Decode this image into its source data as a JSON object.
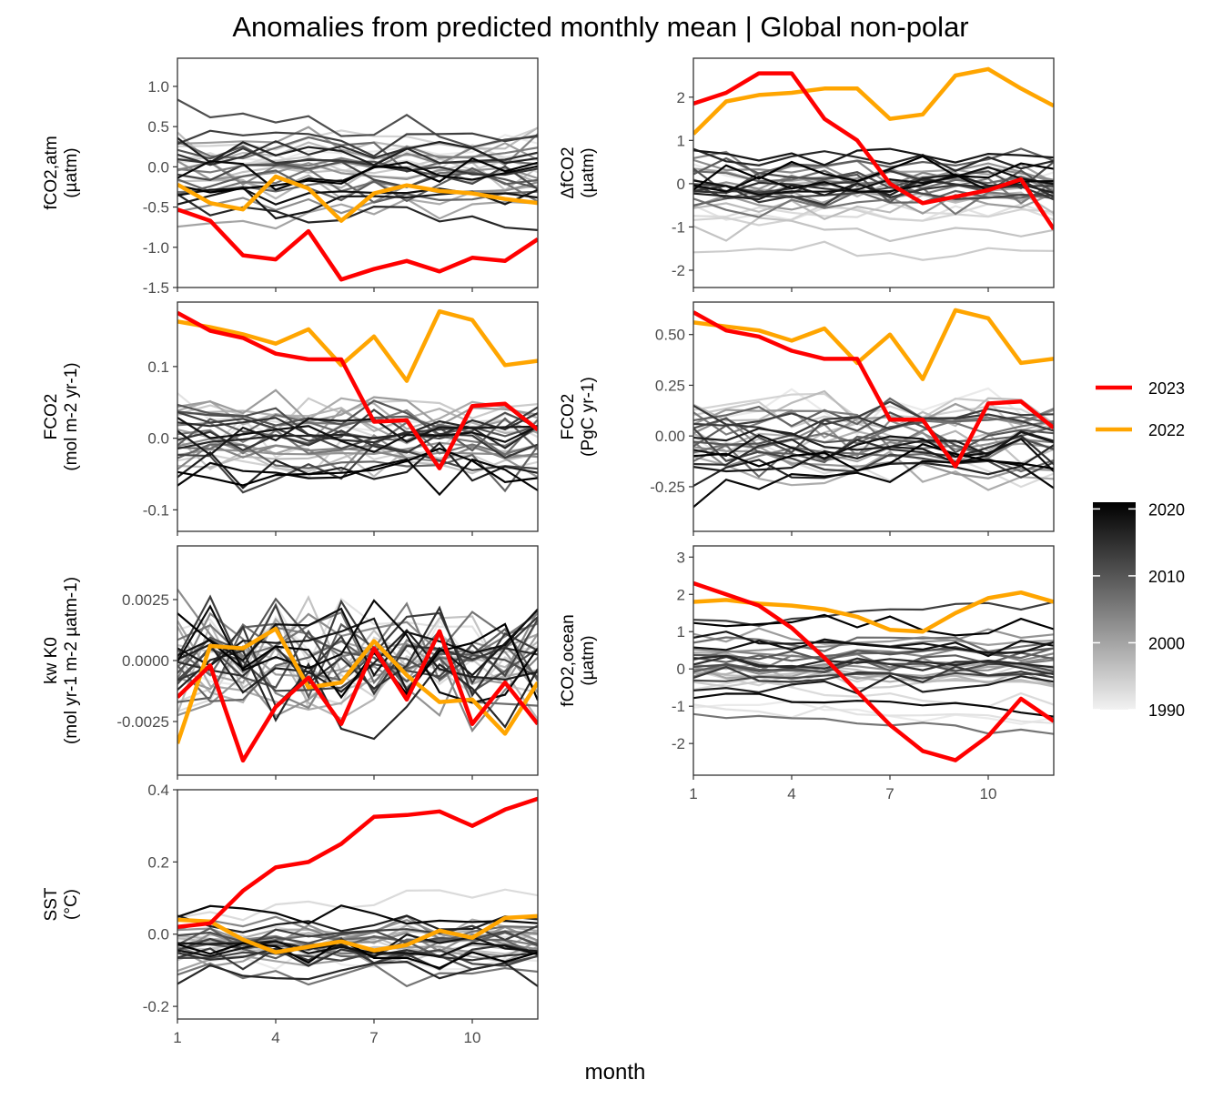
{
  "title": "Anomalies from predicted monthly mean | Global non-polar",
  "xlabel": "month",
  "legend": {
    "highlight": [
      {
        "label": "2023",
        "color": "#ff0000"
      },
      {
        "label": "2022",
        "color": "#ffa500"
      }
    ],
    "colorbar": {
      "labels": [
        "2020",
        "2010",
        "2000",
        "1990"
      ],
      "ticks": [
        2020,
        2010,
        2000,
        1990
      ],
      "min": 1990,
      "max": 2021,
      "low_color": "#f2f2f2",
      "high_color": "#000000"
    }
  },
  "chart_data": [
    {
      "type": "line",
      "panel": "fCO2_atm",
      "ylabel_lines": [
        "fCO2,atm",
        "(µatm)"
      ],
      "xlim": [
        1,
        12
      ],
      "ylim": [
        -1.5,
        1.35
      ],
      "yticks": [
        -1.5,
        -1.0,
        -0.5,
        0.0,
        0.5,
        1.0
      ],
      "ytick_labels": [
        "-1.5",
        "-1.0",
        "-0.5",
        "0.0",
        "0.5",
        "1.0"
      ],
      "x": [
        1,
        2,
        3,
        4,
        5,
        6,
        7,
        8,
        9,
        10,
        11,
        12
      ],
      "series": [
        {
          "name": "2023",
          "values": [
            -0.53,
            -0.67,
            -1.1,
            -1.15,
            -0.8,
            -1.4,
            -1.27,
            -1.17,
            -1.3,
            -1.13,
            -1.17,
            -0.9
          ]
        },
        {
          "name": "2022",
          "values": [
            -0.22,
            -0.45,
            -0.53,
            -0.12,
            -0.27,
            -0.67,
            -0.33,
            -0.23,
            -0.3,
            -0.33,
            -0.4,
            -0.45
          ]
        }
      ],
      "background": {
        "years": [
          1991,
          2021
        ],
        "center": 0.0,
        "spread": 0.55,
        "noise": 0.16,
        "trend": 0.0
      }
    },
    {
      "type": "line",
      "panel": "delta_fCO2",
      "ylabel_lines": [
        "ΔfCO2",
        "(µatm)"
      ],
      "xlim": [
        1,
        12
      ],
      "ylim": [
        -2.4,
        2.9
      ],
      "yticks": [
        -2,
        -1,
        0,
        1,
        2
      ],
      "ytick_labels": [
        "-2",
        "-1",
        "0",
        "1",
        "2"
      ],
      "x": [
        1,
        2,
        3,
        4,
        5,
        6,
        7,
        8,
        9,
        10,
        11,
        12
      ],
      "series": [
        {
          "name": "2023",
          "values": [
            1.85,
            2.1,
            2.55,
            2.55,
            1.5,
            1.0,
            0.0,
            -0.45,
            -0.3,
            -0.15,
            0.1,
            -1.05
          ]
        },
        {
          "name": "2022",
          "values": [
            1.15,
            1.9,
            2.05,
            2.1,
            2.2,
            2.2,
            1.5,
            1.6,
            2.5,
            2.65,
            2.2,
            1.8
          ]
        }
      ],
      "background": {
        "years": [
          1991,
          2021
        ],
        "center": -0.2,
        "spread": 1.0,
        "noise": 0.25,
        "trend": 0.0
      }
    },
    {
      "type": "line",
      "panel": "FCO2_area",
      "ylabel_lines": [
        "FCO2",
        "(mol m-2 yr-1)"
      ],
      "xlim": [
        1,
        12
      ],
      "ylim": [
        -0.13,
        0.19
      ],
      "yticks": [
        -0.1,
        0.0,
        0.1
      ],
      "ytick_labels": [
        "-0.1",
        "0.0",
        "0.1"
      ],
      "x": [
        1,
        2,
        3,
        4,
        5,
        6,
        7,
        8,
        9,
        10,
        11,
        12
      ],
      "series": [
        {
          "name": "2023",
          "values": [
            0.175,
            0.15,
            0.14,
            0.118,
            0.11,
            0.11,
            0.023,
            0.025,
            -0.042,
            0.045,
            0.048,
            0.012
          ]
        },
        {
          "name": "2022",
          "values": [
            0.163,
            0.155,
            0.145,
            0.132,
            0.152,
            0.102,
            0.142,
            0.08,
            0.177,
            0.165,
            0.102,
            0.108
          ]
        }
      ],
      "background": {
        "years": [
          1991,
          2021
        ],
        "center": 0.0,
        "spread": 0.05,
        "noise": 0.025,
        "trend": 0.0
      }
    },
    {
      "type": "line",
      "panel": "FCO2_total",
      "ylabel_lines": [
        "FCO2",
        "(PgC yr-1)"
      ],
      "xlim": [
        1,
        12
      ],
      "ylim": [
        -0.47,
        0.66
      ],
      "yticks": [
        -0.25,
        0.0,
        0.25,
        0.5
      ],
      "ytick_labels": [
        "-0.25",
        "0.00",
        "0.25",
        "0.50"
      ],
      "x": [
        1,
        2,
        3,
        4,
        5,
        6,
        7,
        8,
        9,
        10,
        11,
        12
      ],
      "series": [
        {
          "name": "2023",
          "values": [
            0.61,
            0.52,
            0.49,
            0.42,
            0.38,
            0.38,
            0.08,
            0.08,
            -0.15,
            0.16,
            0.17,
            0.04
          ]
        },
        {
          "name": "2022",
          "values": [
            0.56,
            0.54,
            0.52,
            0.47,
            0.53,
            0.36,
            0.5,
            0.28,
            0.62,
            0.58,
            0.36,
            0.38
          ]
        }
      ],
      "background": {
        "years": [
          1991,
          2021
        ],
        "center": -0.02,
        "spread": 0.18,
        "noise": 0.08,
        "trend": 0.0
      }
    },
    {
      "type": "line",
      "panel": "kw_K0",
      "ylabel_lines": [
        "kw K0",
        "(mol yr-1 m-2 µatm-1)"
      ],
      "xlim": [
        1,
        12
      ],
      "ylim": [
        -0.0047,
        0.0047
      ],
      "yticks": [
        -0.0025,
        0.0,
        0.0025
      ],
      "ytick_labels": [
        "-0.0025",
        "0.0000",
        "0.0025"
      ],
      "x": [
        1,
        2,
        3,
        4,
        5,
        6,
        7,
        8,
        9,
        10,
        11,
        12
      ],
      "series": [
        {
          "name": "2023",
          "values": [
            -0.0015,
            -0.0002,
            -0.0041,
            -0.0019,
            -0.0007,
            -0.0026,
            0.0005,
            -0.0016,
            0.0012,
            -0.0026,
            -0.0009,
            -0.0026
          ]
        },
        {
          "name": "2022",
          "values": [
            -0.0034,
            0.0006,
            0.0005,
            0.0013,
            -0.0011,
            -0.0009,
            0.0008,
            -0.0006,
            -0.0017,
            -0.0016,
            -0.003,
            -0.0009
          ]
        }
      ],
      "background": {
        "years": [
          1991,
          2021
        ],
        "center": 0.0,
        "spread": 0.0008,
        "noise": 0.0017,
        "trend": 0.0
      }
    },
    {
      "type": "line",
      "panel": "fCO2_ocean",
      "ylabel_lines": [
        "fCO2,ocean",
        "(µatm)"
      ],
      "xlim": [
        1,
        12
      ],
      "ylim": [
        -2.85,
        3.3
      ],
      "yticks": [
        -2,
        -1,
        0,
        1,
        2,
        3
      ],
      "ytick_labels": [
        "-2",
        "-1",
        "0",
        "1",
        "2",
        "3"
      ],
      "x": [
        1,
        2,
        3,
        4,
        5,
        6,
        7,
        8,
        9,
        10,
        11,
        12
      ],
      "series": [
        {
          "name": "2023",
          "values": [
            2.3,
            2.0,
            1.7,
            1.1,
            0.3,
            -0.6,
            -1.5,
            -2.2,
            -2.45,
            -1.8,
            -0.8,
            -1.4
          ]
        },
        {
          "name": "2022",
          "values": [
            1.8,
            1.85,
            1.75,
            1.7,
            1.6,
            1.4,
            1.05,
            1.0,
            1.5,
            1.9,
            2.05,
            1.8
          ]
        }
      ],
      "background": {
        "years": [
          1991,
          2021
        ],
        "center": 0.0,
        "spread": 1.1,
        "noise": 0.2,
        "trend": 0.0
      }
    },
    {
      "type": "line",
      "panel": "SST",
      "ylabel_lines": [
        "SST",
        "(°C)"
      ],
      "xlim": [
        1,
        12
      ],
      "ylim": [
        -0.235,
        0.4
      ],
      "yticks": [
        -0.2,
        0.0,
        0.2,
        0.4
      ],
      "ytick_labels": [
        "-0.2",
        "0.0",
        "0.2",
        "0.4"
      ],
      "x": [
        1,
        2,
        3,
        4,
        5,
        6,
        7,
        8,
        9,
        10,
        11,
        12
      ],
      "series": [
        {
          "name": "2023",
          "values": [
            0.02,
            0.03,
            0.12,
            0.185,
            0.2,
            0.25,
            0.325,
            0.33,
            0.34,
            0.3,
            0.345,
            0.375
          ]
        },
        {
          "name": "2022",
          "values": [
            0.04,
            0.035,
            -0.015,
            -0.05,
            -0.035,
            -0.02,
            -0.045,
            -0.03,
            0.01,
            -0.01,
            0.045,
            0.05
          ]
        }
      ],
      "background": {
        "years": [
          1991,
          2021
        ],
        "center": -0.03,
        "spread": 0.08,
        "noise": 0.03,
        "trend": 0.0
      }
    }
  ],
  "xticks": [
    1,
    4,
    7,
    10
  ],
  "xtick_labels": [
    "1",
    "4",
    "7",
    "10"
  ]
}
